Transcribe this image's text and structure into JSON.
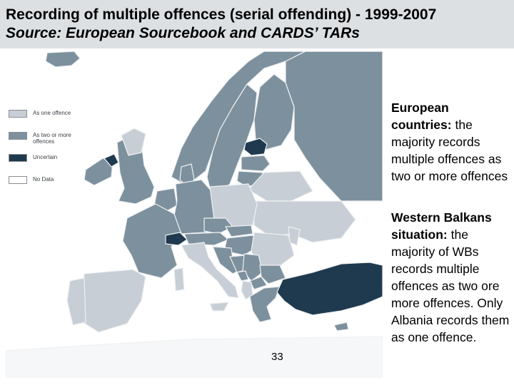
{
  "title": {
    "line1": "Recording of multiple offences (serial offending) - 1999-2007",
    "line2": "Source: European Sourcebook and CARDS’ TARs"
  },
  "legend": [
    {
      "label": "As one offence",
      "color": "#c8ced5"
    },
    {
      "label": "As two or more offences",
      "color": "#7d909d"
    },
    {
      "label": "Uncertain",
      "color": "#1f3a4f"
    },
    {
      "label": "No Data",
      "color": "#ffffff"
    }
  ],
  "colors": {
    "one_offence": "#c8ced5",
    "two_or_more": "#7d909d",
    "uncertain": "#1f3a4f",
    "no_data": "#ffffff",
    "sea": "#ffffff",
    "border": "#eef1f3"
  },
  "page_number": "33",
  "european": {
    "heading": "European countries:",
    "body": "the majority records multiple offences as two or more offences"
  },
  "western_balkans": {
    "heading": "Western Balkans situation:",
    "body": "the majority of WBs records multiple offences as two ore more offences. Only Albania records them as one offence."
  }
}
